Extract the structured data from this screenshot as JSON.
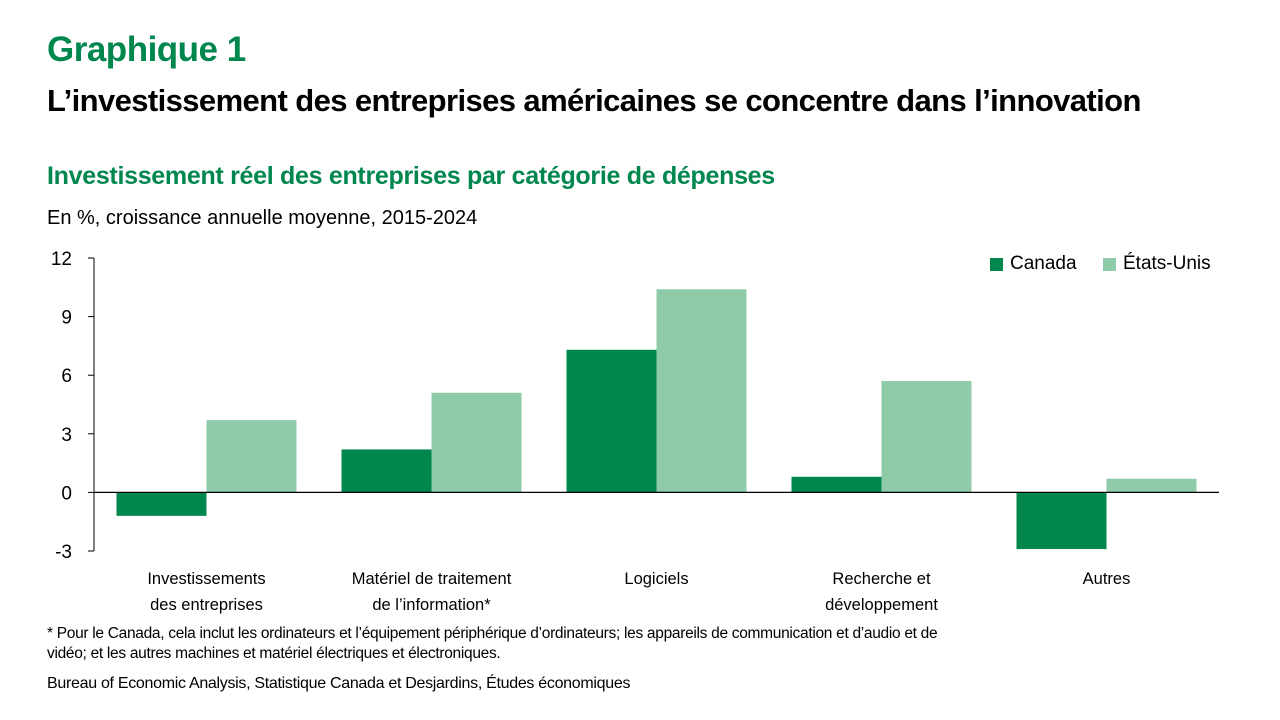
{
  "header": {
    "kicker": "Graphique 1",
    "title": "L’investissement des entreprises américaines se concentre dans l’innovation",
    "subtitle": "Investissement réel des entreprises par catégorie de dépenses",
    "units": "En %, croissance annuelle moyenne, 2015-2024"
  },
  "footnote": "* Pour le Canada, cela inclut les ordinateurs et l’équipement périphérique d’ordinateurs; les appareils de communication et d’audio et de vidéo; et les autres machines et matériel électriques et électroniques.",
  "source": "Bureau of Economic Analysis, Statistique Canada et Desjardins, Études économiques",
  "chart_data": {
    "type": "bar",
    "title": "Investissement réel des entreprises par catégorie de dépenses",
    "xlabel": "",
    "ylabel": "En %, croissance annuelle moyenne, 2015-2024",
    "categories": [
      [
        "Investissements",
        "des entreprises"
      ],
      [
        "Matériel de traitement",
        "de l’information*"
      ],
      [
        "Logiciels"
      ],
      [
        "Recherche et",
        "développement"
      ],
      [
        "Autres"
      ]
    ],
    "series": [
      {
        "name": "Canada",
        "color": "#00874E",
        "values": [
          -1.2,
          2.2,
          7.3,
          0.8,
          -2.9
        ]
      },
      {
        "name": "États-Unis",
        "color": "#8FCAA9",
        "values": [
          3.7,
          5.1,
          10.4,
          5.7,
          0.7
        ]
      }
    ],
    "ylim": [
      -3,
      12
    ],
    "yticks": [
      -3,
      0,
      3,
      6,
      9,
      12
    ],
    "grid": false,
    "legend_position": "top-right"
  }
}
